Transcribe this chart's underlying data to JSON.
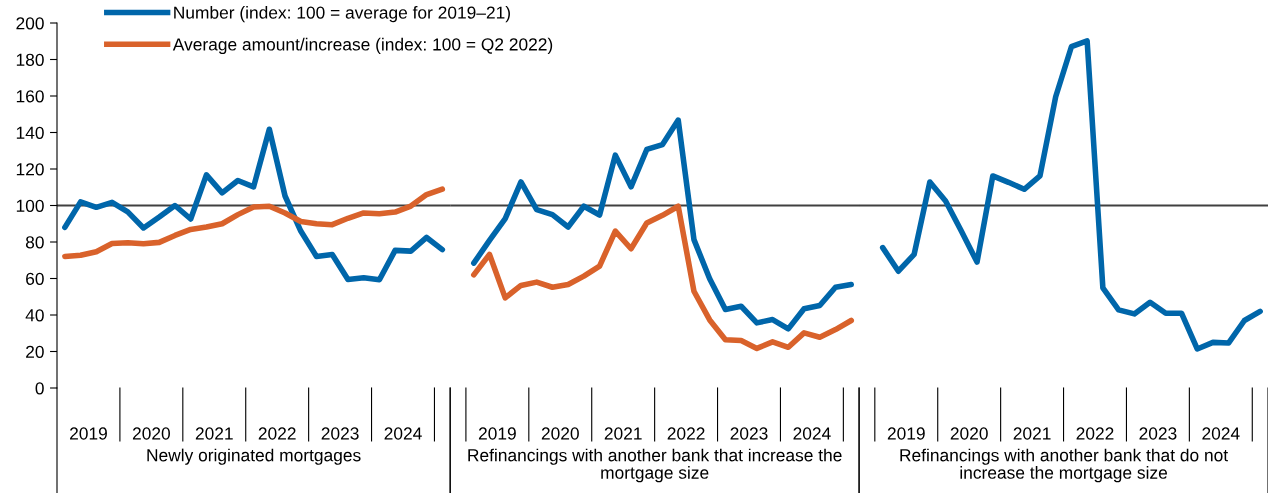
{
  "chart_data": [
    {
      "type": "line",
      "xlabel": "Newly originated mortgages",
      "x": [
        2019.125,
        2019.375,
        2019.625,
        2019.875,
        2020.125,
        2020.375,
        2020.625,
        2020.875,
        2021.125,
        2021.375,
        2021.625,
        2021.875,
        2022.125,
        2022.375,
        2022.625,
        2022.875,
        2023.125,
        2023.375,
        2023.625,
        2023.875,
        2024.125,
        2024.375,
        2024.625,
        2024.875,
        2025.125
      ],
      "series": [
        {
          "name": "Number (index: 100 = average for 2019–21)",
          "color": "#0066aa",
          "values": [
            88,
            102,
            99,
            101.7,
            96.5,
            87.7,
            93.7,
            100,
            92.6,
            116.8,
            106.9,
            113.7,
            110.2,
            141.8,
            105.2,
            86,
            72.1,
            73.2,
            59.5,
            60.4,
            59.3,
            75.4,
            75,
            82.5,
            75.8
          ]
        },
        {
          "name": "Average amount/increase (index: 100 = Q2 2022)",
          "color": "#d9622b",
          "values": [
            72.1,
            72.7,
            74.7,
            79.2,
            79.6,
            79,
            79.8,
            83.6,
            86.9,
            88.2,
            90,
            95,
            99.2,
            99.6,
            95.9,
            91.2,
            90,
            89.5,
            93,
            95.9,
            95.5,
            96.4,
            99.7,
            106,
            109
          ]
        }
      ],
      "xlim": [
        2019,
        2025.25
      ],
      "xticks": [
        {
          "value": 2019.5,
          "label": "2019"
        },
        {
          "value": 2020.5,
          "label": "2020"
        },
        {
          "value": 2021.5,
          "label": "2021"
        },
        {
          "value": 2022.5,
          "label": "2022"
        },
        {
          "value": 2023.5,
          "label": "2023"
        },
        {
          "value": 2024.5,
          "label": "2024"
        }
      ],
      "ylim": [
        0,
        200
      ],
      "yticks": [
        0,
        20,
        40,
        60,
        80,
        100,
        120,
        140,
        160,
        180,
        200
      ],
      "ref_lines": [
        {
          "axis": "y",
          "value": 100,
          "color": "#404040"
        }
      ],
      "legend": "top",
      "marker": "none",
      "line_style": "solid"
    },
    {
      "type": "line",
      "xlabel": "Refinancings with another bank that increase the mortgage size",
      "x": [
        2019.125,
        2019.375,
        2019.625,
        2019.875,
        2020.125,
        2020.375,
        2020.625,
        2020.875,
        2021.125,
        2021.375,
        2021.625,
        2021.875,
        2022.125,
        2022.375,
        2022.625,
        2022.875,
        2023.125,
        2023.375,
        2023.625,
        2023.875,
        2024.125,
        2024.375,
        2024.625,
        2024.875,
        2025.125
      ],
      "series": [
        {
          "color": "#0066aa",
          "values": [
            68.4,
            80.9,
            92.8,
            112.9,
            97.7,
            95,
            88.2,
            99.6,
            94.8,
            127.6,
            110.2,
            130.7,
            133.4,
            146.8,
            81.3,
            59.9,
            43,
            44.8,
            35.7,
            37.5,
            32.4,
            43.4,
            45.2,
            55.2,
            56.7
          ]
        },
        {
          "color": "#d9622b",
          "values": [
            62,
            73.2,
            49.4,
            56.2,
            58,
            55.2,
            56.7,
            61.3,
            66.8,
            86,
            76.3,
            90.4,
            94.6,
            99.6,
            53,
            37.3,
            26.4,
            26,
            21.7,
            25.3,
            22.3,
            30.2,
            27.8,
            32,
            37
          ]
        }
      ],
      "xlim": [
        2018.75,
        2025.25
      ],
      "xticks": [
        {
          "value": 2019.5,
          "label": "2019"
        },
        {
          "value": 2020.5,
          "label": "2020"
        },
        {
          "value": 2021.5,
          "label": "2021"
        },
        {
          "value": 2022.5,
          "label": "2022"
        },
        {
          "value": 2023.5,
          "label": "2023"
        },
        {
          "value": 2024.5,
          "label": "2024"
        }
      ],
      "ylim": [
        0,
        200
      ],
      "yticks": [
        0,
        20,
        40,
        60,
        80,
        100,
        120,
        140,
        160,
        180,
        200
      ],
      "ref_lines": [
        {
          "axis": "y",
          "value": 100,
          "color": "#404040"
        }
      ],
      "tick_labels": "x",
      "marker": "none",
      "line_style": "solid"
    },
    {
      "type": "line",
      "xlabel": "Refinancings with another bank that do not increase the mortgage size",
      "x": [
        2019.125,
        2019.375,
        2019.625,
        2019.875,
        2020.125,
        2020.375,
        2020.625,
        2020.875,
        2021.125,
        2021.375,
        2021.625,
        2021.875,
        2022.125,
        2022.375,
        2022.625,
        2022.875,
        2023.125,
        2023.375,
        2023.625,
        2023.875,
        2024.125,
        2024.375,
        2024.625,
        2024.875,
        2025.125
      ],
      "series": [
        {
          "color": "#0066aa",
          "values": [
            76.9,
            64,
            73.2,
            112.9,
            102.5,
            86,
            69,
            116.2,
            112.7,
            108.9,
            116.2,
            159.6,
            187,
            190.2,
            54.9,
            42.8,
            40.6,
            47,
            41,
            41,
            21.4,
            25,
            24.7,
            37,
            42
          ]
        }
      ],
      "xlim": [
        2018.75,
        2025.25
      ],
      "xticks": [
        {
          "value": 2019.5,
          "label": "2019"
        },
        {
          "value": 2020.5,
          "label": "2020"
        },
        {
          "value": 2021.5,
          "label": "2021"
        },
        {
          "value": 2022.5,
          "label": "2022"
        },
        {
          "value": 2023.5,
          "label": "2023"
        },
        {
          "value": 2024.5,
          "label": "2024"
        }
      ],
      "ylim": [
        0,
        200
      ],
      "yticks": [
        0,
        20,
        40,
        60,
        80,
        100,
        120,
        140,
        160,
        180,
        200
      ],
      "ref_lines": [
        {
          "axis": "y",
          "value": 100,
          "color": "#404040"
        }
      ],
      "tick_labels": "x",
      "marker": "none",
      "line_style": "solid"
    }
  ]
}
